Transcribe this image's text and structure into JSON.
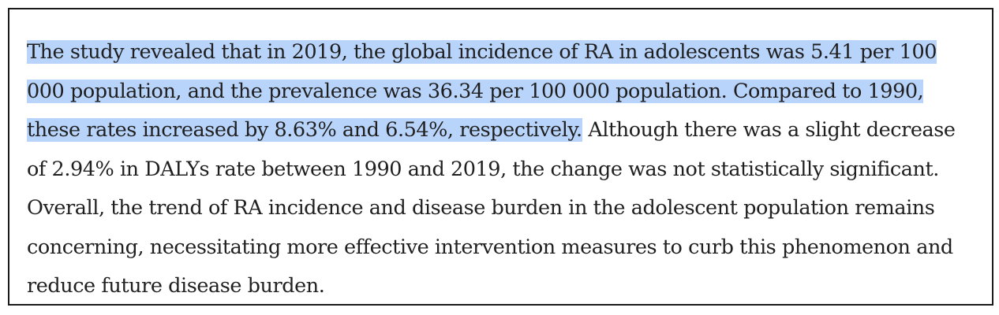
{
  "document": {
    "highlight_color": "#b9d4fb",
    "lines": [
      {
        "highlighted": "The study revealed that in 2019, the global incidence of RA in adolescents was 5.41 per 100",
        "plain": ""
      },
      {
        "highlighted": "000 population, and the prevalence was 36.34 per 100 000 population. Compared to 1990,",
        "plain": ""
      },
      {
        "highlighted": "these rates increased by 8.63% and 6.54%, respectively.",
        "plain": " Although there was a slight decrease"
      },
      {
        "highlighted": "",
        "plain": "of 2.94% in DALYs rate between 1990 and 2019, the change was not statistically significant."
      },
      {
        "highlighted": "",
        "plain": "Overall, the trend of RA incidence and disease burden in the adolescent population remains"
      },
      {
        "highlighted": "",
        "plain": "concerning, necessitating more effective intervention measures to curb this phenomenon and"
      },
      {
        "highlighted": "",
        "plain": "reduce future disease burden."
      }
    ]
  }
}
